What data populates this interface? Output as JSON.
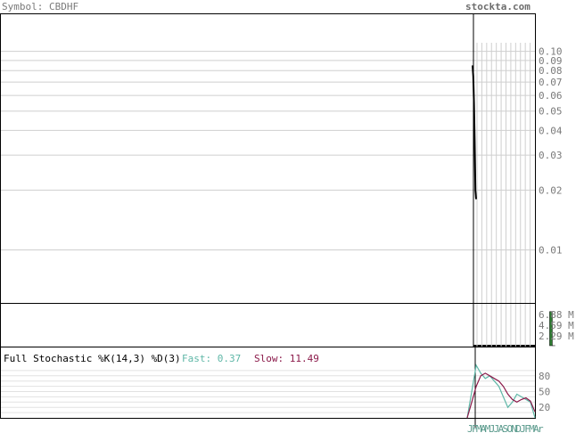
{
  "header": {
    "symbol_label": "Symbol: CBDHF",
    "site": "stockta.com"
  },
  "colors": {
    "grid": "#cfcfcf",
    "frame": "#000000",
    "price": "#000000",
    "volume": "#2e7d32",
    "fast": "#5fb7a7",
    "slow": "#8b1a4a",
    "axis_text": "#7a7a7a"
  },
  "chart_data": [
    {
      "type": "line",
      "panel": "price",
      "scale": "log",
      "ylim": [
        0.007,
        0.12
      ],
      "y_ticks": [
        0.1,
        0.09,
        0.08,
        0.07,
        0.06,
        0.05,
        0.04,
        0.03,
        0.02,
        0.01
      ],
      "y_tick_labels": [
        "0.10",
        "0.09",
        "0.08",
        "0.07",
        "0.06",
        "0.05",
        "0.04",
        "0.03",
        "0.02",
        "0.01"
      ],
      "series": [
        {
          "values": [
            0.085,
            0.075,
            0.055,
            0.035,
            0.02,
            0.018
          ]
        }
      ]
    },
    {
      "type": "bar",
      "panel": "volume",
      "ylim": [
        0,
        9.17
      ],
      "y_ticks": [
        6.88,
        4.59,
        2.29
      ],
      "y_tick_labels": [
        "6.88 M",
        "4.59 M",
        "2.29 M"
      ],
      "values": [
        0,
        0,
        0,
        0,
        0,
        0,
        0,
        0,
        0,
        0,
        0,
        0,
        0,
        0,
        0,
        0,
        0,
        0,
        0,
        0,
        7.5,
        0.2,
        0
      ]
    },
    {
      "type": "line",
      "panel": "stochastic",
      "title": "Full Stochastic %K(14,3) %D(3)",
      "fast_label": "Fast: 0.37",
      "slow_label": "Slow: 11.49",
      "ylim": [
        0,
        100
      ],
      "y_ticks": [
        80,
        50,
        20
      ],
      "y_tick_labels": [
        "80",
        "50",
        "20"
      ],
      "series": [
        {
          "name": "Fast",
          "values": [
            0,
            50,
            100,
            85,
            75,
            80,
            70,
            60,
            40,
            20,
            30,
            45,
            40,
            35,
            30,
            0.37
          ]
        },
        {
          "name": "Slow",
          "values": [
            0,
            30,
            60,
            80,
            85,
            80,
            75,
            70,
            60,
            45,
            35,
            30,
            35,
            38,
            32,
            11.49
          ]
        }
      ]
    }
  ],
  "x_axis": {
    "tick_labels": [
      "J",
      "F",
      "M",
      "A",
      "M",
      "J",
      "J",
      "A",
      "S",
      "O",
      "N",
      "D",
      "J",
      "F",
      "M",
      "A",
      "r"
    ]
  }
}
